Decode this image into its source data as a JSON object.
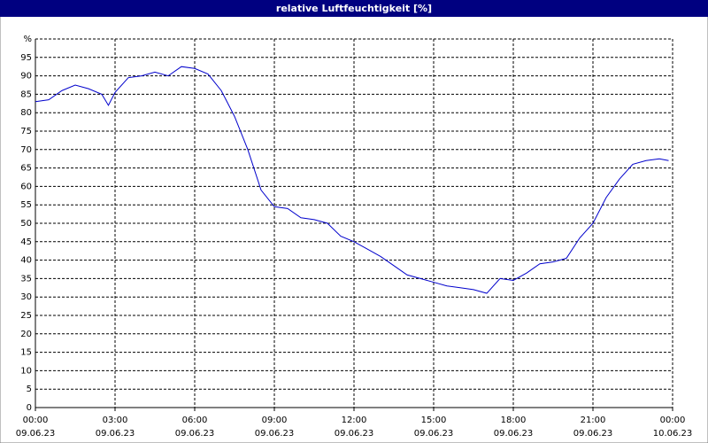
{
  "chart_data": {
    "type": "line",
    "title": "relative Luftfeuchtigkeit [%]",
    "x": [
      0,
      0.5,
      1,
      1.5,
      2,
      2.5,
      2.75,
      3,
      3.5,
      4,
      4.5,
      5,
      5.5,
      6,
      6.5,
      7,
      7.5,
      8,
      8.5,
      9,
      9.5,
      10,
      10.5,
      11,
      11.5,
      12,
      12.5,
      13,
      13.5,
      14,
      14.5,
      15,
      15.5,
      16,
      16.5,
      17,
      17.5,
      18,
      18.5,
      19,
      19.5,
      20,
      20.5,
      21,
      21.5,
      22,
      22.5,
      23,
      23.5,
      23.85
    ],
    "series": [
      {
        "name": "relative Luftfeuchtigkeit",
        "color": "#0000cc",
        "values": [
          83,
          83.5,
          86,
          87.5,
          86.5,
          85,
          82,
          85.5,
          89.5,
          90,
          91,
          90,
          92.5,
          92,
          90.5,
          86,
          79,
          70,
          59,
          54.5,
          54,
          51.5,
          51,
          50,
          46.5,
          45,
          43,
          41,
          38.5,
          36,
          35,
          34,
          33,
          32.5,
          32,
          31,
          35,
          34.5,
          36.5,
          39,
          39.5,
          40.5,
          46,
          50,
          57,
          62,
          66,
          67,
          67.5,
          67
        ]
      }
    ],
    "xlim": [
      0,
      24
    ],
    "xticks": [
      {
        "value": 0,
        "label": "00:00",
        "sublabel": "09.06.23"
      },
      {
        "value": 3,
        "label": "03:00",
        "sublabel": "09.06.23"
      },
      {
        "value": 6,
        "label": "06:00",
        "sublabel": "09.06.23"
      },
      {
        "value": 9,
        "label": "09:00",
        "sublabel": "09.06.23"
      },
      {
        "value": 12,
        "label": "12:00",
        "sublabel": "09.06.23"
      },
      {
        "value": 15,
        "label": "15:00",
        "sublabel": "09.06.23"
      },
      {
        "value": 18,
        "label": "18:00",
        "sublabel": "09.06.23"
      },
      {
        "value": 21,
        "label": "21:00",
        "sublabel": "09.06.23"
      },
      {
        "value": 24,
        "label": "00:00",
        "sublabel": "10.06.23"
      }
    ],
    "ylim": [
      0,
      100
    ],
    "yticks": [
      0,
      5,
      10,
      15,
      20,
      25,
      30,
      35,
      40,
      45,
      50,
      55,
      60,
      65,
      70,
      75,
      80,
      85,
      90,
      95,
      {
        "value": 100,
        "label": "%"
      }
    ],
    "grid": true
  }
}
